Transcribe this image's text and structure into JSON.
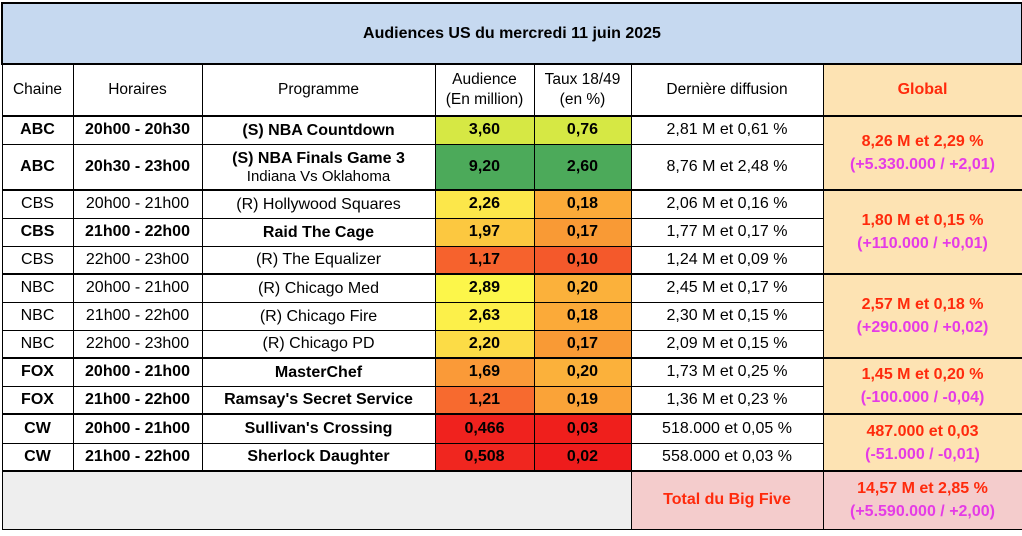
{
  "title": "Audiences US du mercredi 11 juin 2025",
  "headers": {
    "chaine": "Chaine",
    "horaires": "Horaires",
    "programme": "Programme",
    "audience_l1": "Audience",
    "audience_l2": "(En million)",
    "taux_l1": "Taux 18/49",
    "taux_l2": "(en %)",
    "derniere": "Dernière diffusion",
    "global": "Global"
  },
  "rows": [
    {
      "chaine": "ABC",
      "horaire": "20h00 - 20h30",
      "programme": "(S) NBA Countdown",
      "programme_sub": "",
      "audience": "3,60",
      "taux": "0,76",
      "derniere": "2,81 M et 0,61 %",
      "bold": true,
      "aud_color": "#d6e844",
      "taux_color": "#d6e844"
    },
    {
      "chaine": "ABC",
      "horaire": "20h30 - 23h00",
      "programme": "(S) NBA Finals Game 3",
      "programme_sub": "Indiana Vs Oklahoma",
      "audience": "9,20",
      "taux": "2,60",
      "derniere": "8,76 M et 2,48 %",
      "bold": true,
      "aud_color": "#4caa5a",
      "taux_color": "#4caa5a"
    },
    {
      "chaine": "CBS",
      "horaire": "20h00 - 21h00",
      "programme": "(R) Hollywood Squares",
      "programme_sub": "",
      "audience": "2,26",
      "taux": "0,18",
      "derniere": "2,06 M et 0,16 %",
      "bold": false,
      "aud_color": "#fce74a",
      "taux_color": "#fbaa39"
    },
    {
      "chaine": "CBS",
      "horaire": "21h00 - 22h00",
      "programme": "Raid The Cage",
      "programme_sub": "",
      "audience": "1,97",
      "taux": "0,17",
      "derniere": "1,77 M et 0,17 %",
      "bold": true,
      "aud_color": "#fcc840",
      "taux_color": "#f99a35"
    },
    {
      "chaine": "CBS",
      "horaire": "22h00 - 23h00",
      "programme": "(R) The Equalizer",
      "programme_sub": "",
      "audience": "1,17",
      "taux": "0,10",
      "derniere": "1,24 M et 0,09 %",
      "bold": false,
      "aud_color": "#f6622d",
      "taux_color": "#f4592b"
    },
    {
      "chaine": "NBC",
      "horaire": "20h00 - 21h00",
      "programme": "(R) Chicago Med",
      "programme_sub": "",
      "audience": "2,89",
      "taux": "0,20",
      "derniere": "2,45 M et 0,17 %",
      "bold": false,
      "aud_color": "#fcf64a",
      "taux_color": "#fbb13b"
    },
    {
      "chaine": "NBC",
      "horaire": "21h00 - 22h00",
      "programme": "(R) Chicago Fire",
      "programme_sub": "",
      "audience": "2,63",
      "taux": "0,18",
      "derniere": "2,30 M et 0,15 %",
      "bold": false,
      "aud_color": "#fcf04a",
      "taux_color": "#fbaa39"
    },
    {
      "chaine": "NBC",
      "horaire": "22h00 - 23h00",
      "programme": "(R) Chicago PD",
      "programme_sub": "",
      "audience": "2,20",
      "taux": "0,17",
      "derniere": "2,09 M et 0,15 %",
      "bold": false,
      "aud_color": "#fcdc46",
      "taux_color": "#f99a35"
    },
    {
      "chaine": "FOX",
      "horaire": "20h00 - 21h00",
      "programme": "MasterChef",
      "programme_sub": "",
      "audience": "1,69",
      "taux": "0,20",
      "derniere": "1,73 M et 0,25 %",
      "bold": true,
      "aud_color": "#fa9a38",
      "taux_color": "#fbb13b"
    },
    {
      "chaine": "FOX",
      "horaire": "21h00 - 22h00",
      "programme": "Ramsay's Secret Service",
      "programme_sub": "",
      "audience": "1,21",
      "taux": "0,19",
      "derniere": "1,36 M et 0,23 %",
      "bold": true,
      "aud_color": "#f76a2f",
      "taux_color": "#faa338"
    },
    {
      "chaine": "CW",
      "horaire": "20h00 - 21h00",
      "programme": "Sullivan's Crossing",
      "programme_sub": "",
      "audience": "0,466",
      "taux": "0,03",
      "derniere": "518.000 et 0,05 %",
      "bold": true,
      "aud_color": "#f0221e",
      "taux_color": "#ef1f1c"
    },
    {
      "chaine": "CW",
      "horaire": "21h00 - 22h00",
      "programme": "Sherlock Daughter",
      "programme_sub": "",
      "audience": "0,508",
      "taux": "0,02",
      "derniere": "558.000 et 0,03 %",
      "bold": true,
      "aud_color": "#f0261f",
      "taux_color": "#ee1c1c"
    }
  ],
  "globals": [
    {
      "network": "ABC",
      "line1": "8,26 M et 2,29 %",
      "line2": "(+5.330.000 / +2,01)"
    },
    {
      "network": "CBS",
      "line1": "1,80 M et 0,15 %",
      "line2": "(+110.000 / +0,01)"
    },
    {
      "network": "NBC",
      "line1": "2,57 M et 0,18 %",
      "line2": "(+290.000 / +0,02)"
    },
    {
      "network": "FOX",
      "line1": "1,45 M et 0,20 %",
      "line2": "(-100.000 / -0,04)"
    },
    {
      "network": "CW",
      "line1": "487.000 et 0,03",
      "line2": "(-51.000 / -0,01)"
    }
  ],
  "total": {
    "label": "Total du Big Five",
    "line1": "14,57 M et 2,85 %",
    "line2": "(+5.590.000 / +2,00)"
  },
  "colors": {
    "title_bg": "#c6d9f0",
    "global_bg": "#fde3b3",
    "total_bg": "#f4cccc",
    "global_line1": "#ff2a0c",
    "global_line2": "#e53be6"
  }
}
